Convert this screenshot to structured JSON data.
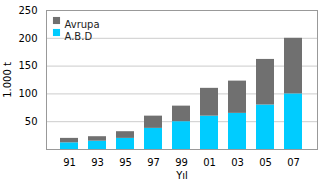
{
  "chart_data": {
    "type": "bar",
    "stacked": true,
    "xlabel": "Yıl",
    "ylabel": "1.000 t",
    "categories": [
      "91",
      "93",
      "95",
      "97",
      "99",
      "01",
      "03",
      "05",
      "07"
    ],
    "series": [
      {
        "name": "A.B.D",
        "color": "#00ccff",
        "values": [
          12,
          15,
          20,
          38,
          50,
          60,
          65,
          80,
          100
        ]
      },
      {
        "name": "Avrupa",
        "color": "#707070",
        "values": [
          8,
          8,
          12,
          22,
          28,
          50,
          58,
          82,
          100
        ]
      }
    ],
    "ylim": [
      0,
      250
    ],
    "yticks": [
      50,
      100,
      150,
      200,
      250
    ],
    "grid": true,
    "legend": "upper left"
  }
}
